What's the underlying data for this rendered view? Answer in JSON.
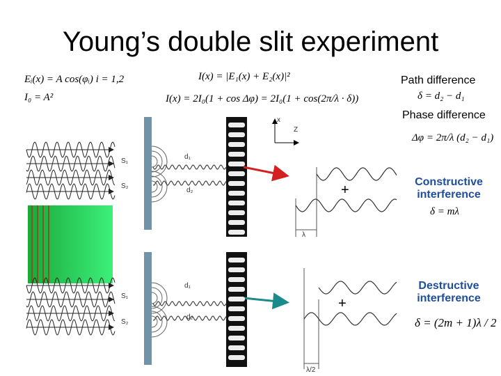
{
  "title": "Young’s double slit experiment",
  "equations": {
    "field": "Eᵢ(x) = A cos(φᵢ)  i = 1,2",
    "intensity0": "I₀ = A²",
    "intensity": "I(x) = |E₁(x) + E₂(x)|²",
    "intensity_expanded": "I(x) = 2I₀(1 + cos Δφ) = 2I₀(1 + cos(2π/λ · δ))"
  },
  "path_difference": {
    "label": "Path difference",
    "equation": "δ = d₂ − d₁"
  },
  "phase_difference": {
    "label": "Phase difference",
    "equation": "Δφ = 2π/λ (d₂ − d₁)"
  },
  "axes": {
    "x": "x",
    "z": "Z"
  },
  "constructive": {
    "label": "Constructive interference",
    "condition": "δ = mλ",
    "plus": "+",
    "scale": "λ",
    "sources": [
      "S₁",
      "S₂"
    ],
    "paths": [
      "d₁",
      "d₂"
    ]
  },
  "destructive": {
    "label": "Destructive interference",
    "condition": "δ = (2m + 1)λ / 2",
    "plus": "+",
    "scale": "λ/2",
    "sources": [
      "S₁",
      "S₂"
    ],
    "paths": [
      "d₁",
      "d₂"
    ]
  }
}
